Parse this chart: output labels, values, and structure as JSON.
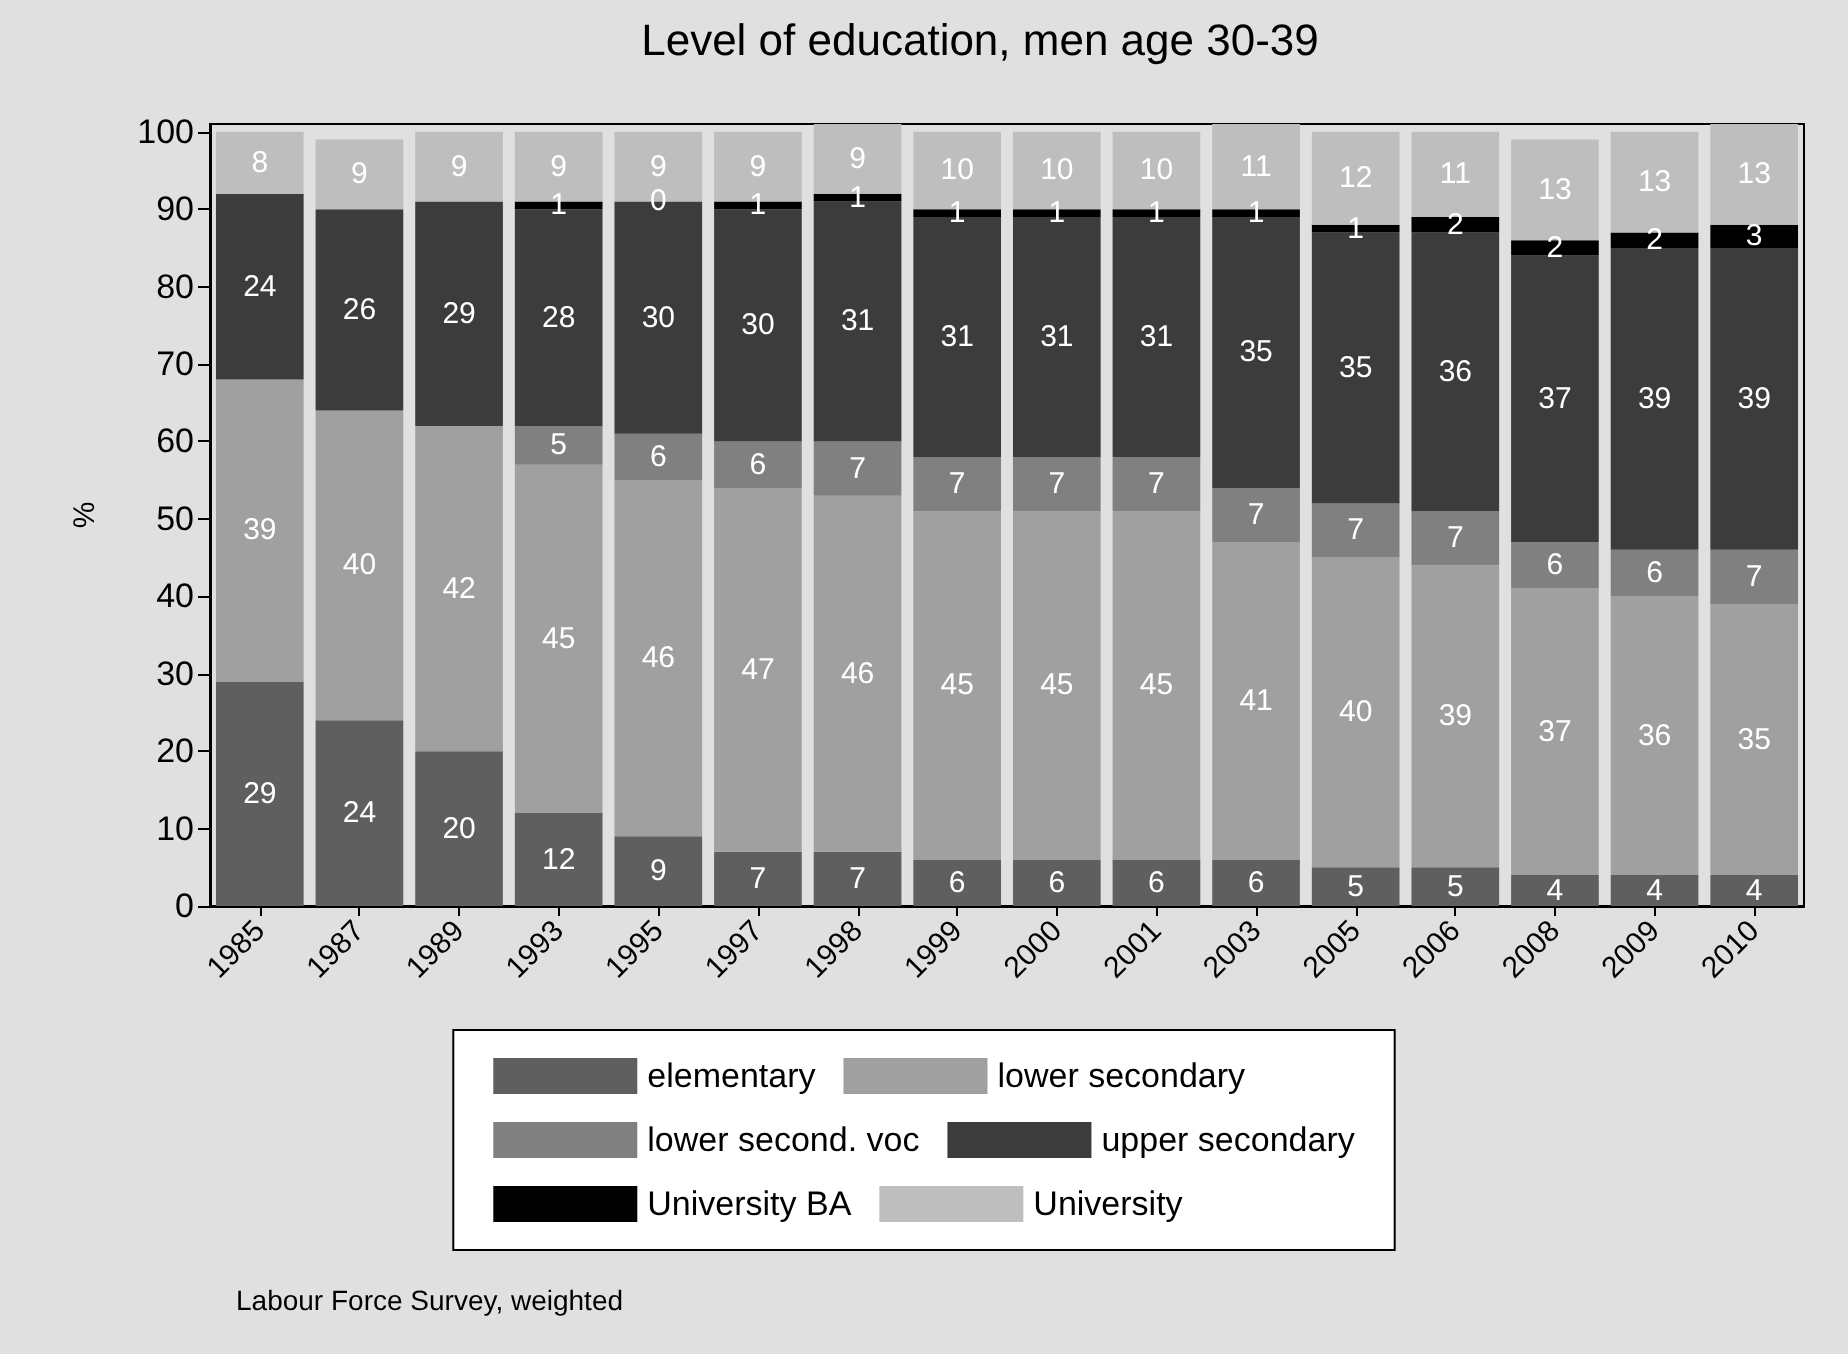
{
  "chart_data": {
    "type": "bar",
    "stacked": true,
    "title": "Level of education, men age 30-39",
    "ylabel": "%",
    "categories": [
      "1985",
      "1987",
      "1989",
      "1993",
      "1995",
      "1997",
      "1998",
      "1999",
      "2000",
      "2001",
      "2003",
      "2005",
      "2006",
      "2008",
      "2009",
      "2010"
    ],
    "series": [
      {
        "name": "elementary",
        "color": "#5f5f5f",
        "values": [
          29,
          24,
          20,
          12,
          9,
          7,
          7,
          6,
          6,
          6,
          6,
          5,
          5,
          4,
          4,
          4
        ]
      },
      {
        "name": "lower secondary",
        "color": "#a0a0a0",
        "values": [
          39,
          40,
          42,
          45,
          46,
          47,
          46,
          45,
          45,
          45,
          41,
          40,
          39,
          37,
          36,
          35
        ]
      },
      {
        "name": "lower second. voc",
        "color": "#808080",
        "values": [
          null,
          null,
          null,
          5,
          6,
          6,
          7,
          7,
          7,
          7,
          7,
          7,
          7,
          6,
          6,
          7
        ]
      },
      {
        "name": "upper secondary",
        "color": "#3c3c3c",
        "values": [
          24,
          26,
          29,
          28,
          30,
          30,
          31,
          31,
          31,
          31,
          35,
          35,
          36,
          37,
          39,
          39
        ]
      },
      {
        "name": "University BA",
        "color": "#000000",
        "values": [
          null,
          null,
          null,
          1,
          0,
          1,
          1,
          1,
          1,
          1,
          1,
          1,
          2,
          2,
          2,
          3
        ]
      },
      {
        "name": "University",
        "color": "#bebebe",
        "values": [
          8,
          9,
          9,
          9,
          9,
          9,
          9,
          10,
          10,
          10,
          11,
          12,
          11,
          13,
          13,
          13
        ]
      }
    ],
    "ylim": [
      0,
      101
    ],
    "yticks": [
      0,
      10,
      20,
      30,
      40,
      50,
      60,
      70,
      80,
      90,
      100
    ],
    "grid": false,
    "legend": "bottom",
    "data_labels": true,
    "annotations": [
      "Labour Force Survey, weighted"
    ]
  }
}
